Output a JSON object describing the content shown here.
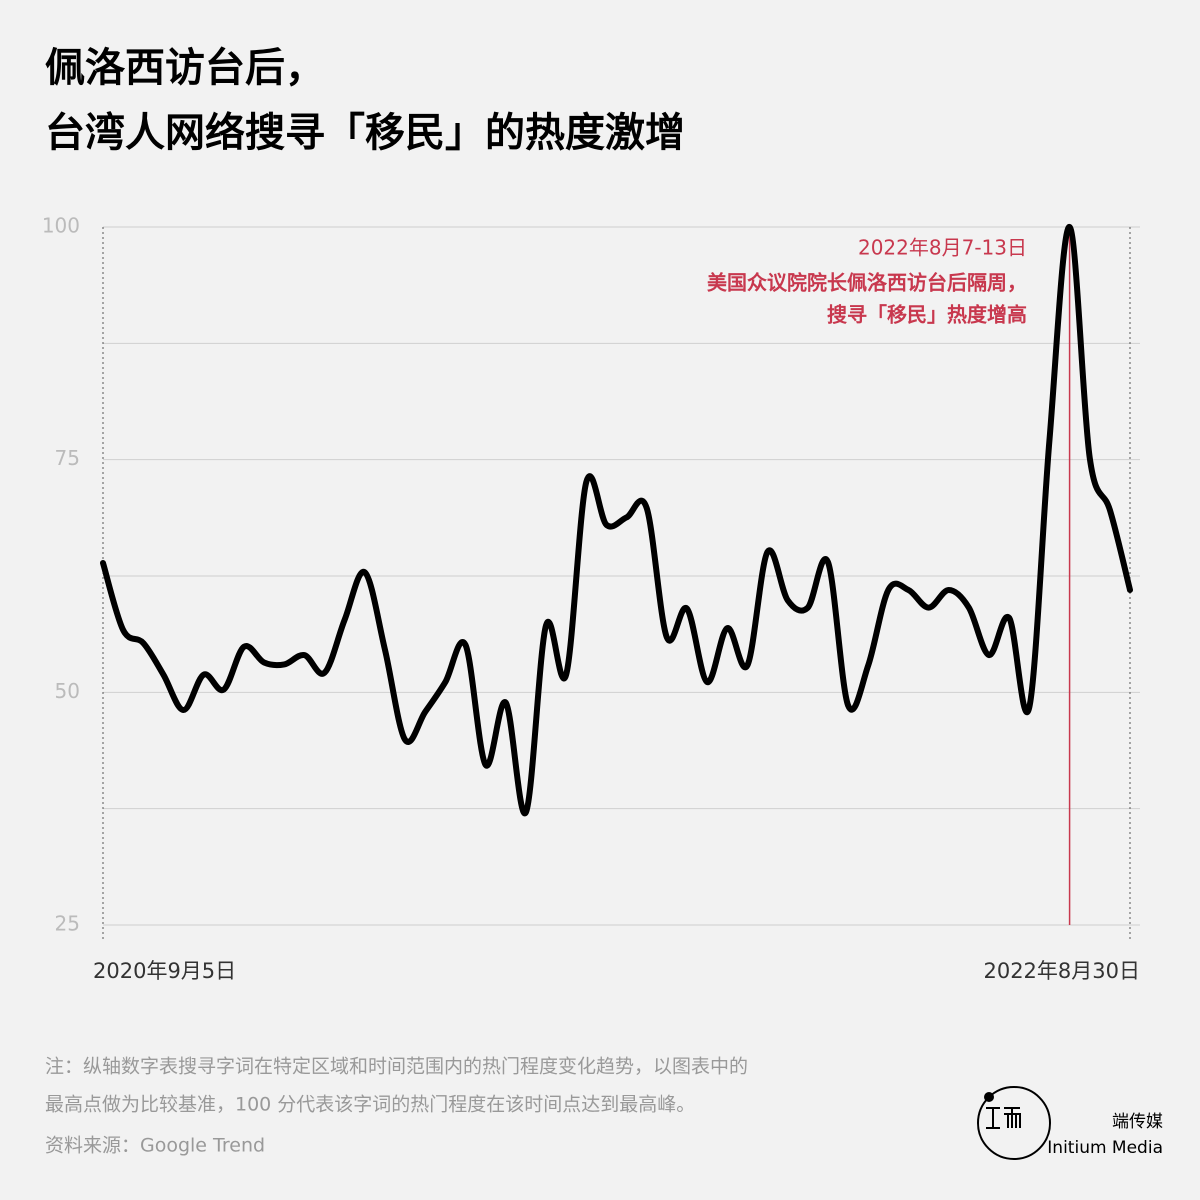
{
  "chart_data": {
    "type": "line",
    "title": [
      "佩洛西访台后，",
      "台湾人网络搜寻「移民」的热度激增"
    ],
    "categories": [
      "2020年9月5日",
      null,
      null,
      null,
      null,
      null,
      null,
      null,
      null,
      null,
      null,
      null,
      null,
      null,
      null,
      null,
      null,
      null,
      null,
      null,
      null,
      null,
      null,
      null,
      null,
      null,
      null,
      null,
      null,
      null,
      null,
      null,
      null,
      null,
      null,
      null,
      null,
      null,
      null,
      null,
      null,
      null,
      null,
      null,
      null,
      null,
      null,
      null,
      null,
      null,
      null,
      "2022年8月30日"
    ],
    "series": [
      {
        "color": "#000000",
        "values": [
          63.9,
          56.7,
          55.3,
          51.9,
          48.1,
          51.9,
          50.3,
          54.9,
          53.2,
          53.0,
          54.0,
          52.1,
          57.8,
          62.9,
          54.6,
          44.9,
          47.9,
          51.1,
          55.1,
          42.2,
          48.9,
          37.1,
          57.2,
          51.9,
          72.6,
          68.0,
          68.8,
          69.8,
          55.9,
          59.0,
          51.1,
          56.9,
          52.9,
          65.1,
          59.9,
          59.1,
          64.0,
          48.6,
          52.9,
          61.0,
          61.0,
          59.1,
          61.0,
          59.1,
          54.0,
          58.0,
          48.4,
          77.1,
          100,
          75.2,
          69.6,
          61.0
        ]
      }
    ],
    "ylim": [
      25,
      100
    ],
    "yticks": [
      25,
      50,
      75,
      100
    ],
    "minor_yticks": [
      37.5,
      62.5,
      87.5
    ],
    "grid": true,
    "annotation": {
      "date": "2022年8月7-13日",
      "lines": [
        "美国众议院院长佩洛西访台后隔周，",
        "搜寻「移民」热度增高"
      ],
      "color": "#c8384e"
    },
    "note": [
      "注：纵轴数字表搜寻字词在特定区域和时间范围内的热门程度变化趋势，以图表中的",
      "最高点做为比较基准，100 分代表该字词的热门程度在该时间点达到最高峰。"
    ],
    "source": "资料来源：Google Trend",
    "brand": {
      "name": "端传媒",
      "name_en": "Initium Media"
    }
  }
}
